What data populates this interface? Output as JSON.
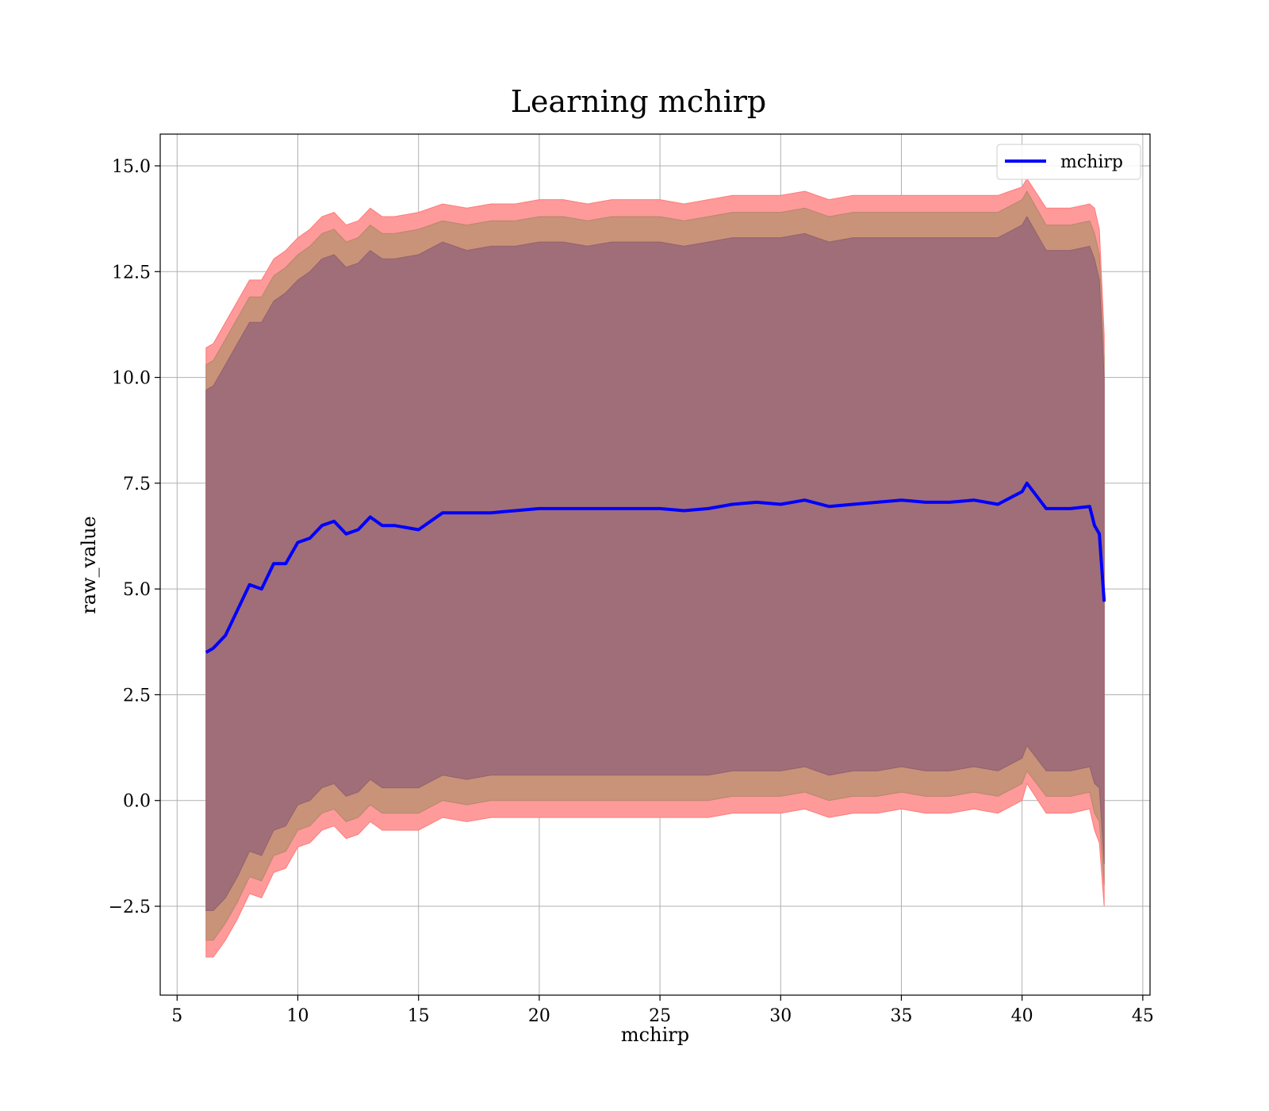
{
  "chart_data": {
    "type": "line",
    "title": "Learning mchirp",
    "xlabel": "mchirp",
    "ylabel": "raw_value",
    "xlim": [
      4.3,
      45.3
    ],
    "ylim": [
      -4.6,
      15.75
    ],
    "xticks": [
      5,
      10,
      15,
      20,
      25,
      30,
      35,
      40,
      45
    ],
    "xtick_labels": [
      "5",
      "10",
      "15",
      "20",
      "25",
      "30",
      "35",
      "40",
      "45"
    ],
    "yticks": [
      -2.5,
      0.0,
      2.5,
      5.0,
      7.5,
      10.0,
      12.5,
      15.0
    ],
    "ytick_labels": [
      "−2.5",
      "0.0",
      "2.5",
      "5.0",
      "7.5",
      "10.0",
      "12.5",
      "15.0"
    ],
    "grid": true,
    "legend": {
      "placement": "upper right",
      "entries": [
        "mchirp"
      ]
    },
    "colors": {
      "line": "#0000ff",
      "band_outer": "#ff9a9a",
      "band_middle": "#c89378",
      "band_inner": "#a06e78"
    },
    "series": [
      {
        "name": "mchirp",
        "x": [
          6.2,
          6.5,
          7.0,
          7.5,
          8.0,
          8.5,
          9.0,
          9.5,
          10.0,
          10.5,
          11.0,
          11.5,
          12.0,
          12.5,
          13.0,
          13.5,
          14.0,
          15.0,
          16.0,
          17.0,
          18.0,
          19.0,
          20.0,
          21.0,
          22.0,
          23.0,
          24.0,
          25.0,
          26.0,
          27.0,
          28.0,
          29.0,
          30.0,
          31.0,
          32.0,
          33.0,
          34.0,
          35.0,
          36.0,
          37.0,
          38.0,
          39.0,
          40.0,
          40.2,
          41.0,
          42.0,
          42.8,
          43.0,
          43.2,
          43.4
        ],
        "mean": [
          3.5,
          3.6,
          3.9,
          4.5,
          5.1,
          5.0,
          5.6,
          5.6,
          6.1,
          6.2,
          6.5,
          6.6,
          6.3,
          6.4,
          6.7,
          6.5,
          6.5,
          6.4,
          6.8,
          6.8,
          6.8,
          6.85,
          6.9,
          6.9,
          6.9,
          6.9,
          6.9,
          6.9,
          6.85,
          6.9,
          7.0,
          7.05,
          7.0,
          7.1,
          6.95,
          7.0,
          7.05,
          7.1,
          7.05,
          7.05,
          7.1,
          7.0,
          7.3,
          7.5,
          6.9,
          6.9,
          6.95,
          6.5,
          6.3,
          4.7
        ],
        "upper_inner": [
          9.7,
          9.8,
          10.3,
          10.8,
          11.3,
          11.3,
          11.8,
          12.0,
          12.3,
          12.5,
          12.8,
          12.9,
          12.6,
          12.7,
          13.0,
          12.8,
          12.8,
          12.9,
          13.2,
          13.0,
          13.1,
          13.1,
          13.2,
          13.2,
          13.1,
          13.2,
          13.2,
          13.2,
          13.1,
          13.2,
          13.3,
          13.3,
          13.3,
          13.4,
          13.2,
          13.3,
          13.3,
          13.3,
          13.3,
          13.3,
          13.3,
          13.3,
          13.6,
          13.8,
          13.0,
          13.0,
          13.1,
          12.8,
          12.3,
          10.0
        ],
        "upper_middle": [
          10.3,
          10.4,
          10.9,
          11.4,
          11.9,
          11.9,
          12.4,
          12.6,
          12.9,
          13.1,
          13.4,
          13.5,
          13.2,
          13.3,
          13.6,
          13.4,
          13.4,
          13.5,
          13.7,
          13.6,
          13.7,
          13.7,
          13.8,
          13.8,
          13.7,
          13.8,
          13.8,
          13.8,
          13.7,
          13.8,
          13.9,
          13.9,
          13.9,
          14.0,
          13.8,
          13.9,
          13.9,
          13.9,
          13.9,
          13.9,
          13.9,
          13.9,
          14.2,
          14.4,
          13.6,
          13.6,
          13.7,
          13.4,
          12.9,
          10.5
        ],
        "upper_outer": [
          10.7,
          10.8,
          11.3,
          11.8,
          12.3,
          12.3,
          12.8,
          13.0,
          13.3,
          13.5,
          13.8,
          13.9,
          13.6,
          13.7,
          14.0,
          13.8,
          13.8,
          13.9,
          14.1,
          14.0,
          14.1,
          14.1,
          14.2,
          14.2,
          14.1,
          14.2,
          14.2,
          14.2,
          14.1,
          14.2,
          14.3,
          14.3,
          14.3,
          14.4,
          14.2,
          14.3,
          14.3,
          14.3,
          14.3,
          14.3,
          14.3,
          14.3,
          14.5,
          14.7,
          14.0,
          14.0,
          14.1,
          14.0,
          13.5,
          11.0
        ],
        "lower_inner": [
          -2.6,
          -2.6,
          -2.3,
          -1.8,
          -1.2,
          -1.3,
          -0.7,
          -0.6,
          -0.1,
          0.0,
          0.3,
          0.4,
          0.1,
          0.2,
          0.5,
          0.3,
          0.3,
          0.3,
          0.6,
          0.5,
          0.6,
          0.6,
          0.6,
          0.6,
          0.6,
          0.6,
          0.6,
          0.6,
          0.6,
          0.6,
          0.7,
          0.7,
          0.7,
          0.8,
          0.6,
          0.7,
          0.7,
          0.8,
          0.7,
          0.7,
          0.8,
          0.7,
          1.0,
          1.3,
          0.7,
          0.7,
          0.8,
          0.4,
          0.3,
          -1.5
        ],
        "lower_middle": [
          -3.3,
          -3.3,
          -2.9,
          -2.4,
          -1.8,
          -1.9,
          -1.3,
          -1.2,
          -0.7,
          -0.6,
          -0.3,
          -0.2,
          -0.5,
          -0.4,
          -0.1,
          -0.3,
          -0.3,
          -0.3,
          0.0,
          -0.1,
          0.0,
          0.0,
          0.0,
          0.0,
          0.0,
          0.0,
          0.0,
          0.0,
          0.0,
          0.0,
          0.1,
          0.1,
          0.1,
          0.2,
          0.0,
          0.1,
          0.1,
          0.2,
          0.1,
          0.1,
          0.2,
          0.1,
          0.4,
          0.7,
          0.1,
          0.1,
          0.2,
          -0.3,
          -0.5,
          -2.0
        ],
        "lower_outer": [
          -3.7,
          -3.7,
          -3.3,
          -2.8,
          -2.2,
          -2.3,
          -1.7,
          -1.6,
          -1.1,
          -1.0,
          -0.7,
          -0.6,
          -0.9,
          -0.8,
          -0.5,
          -0.7,
          -0.7,
          -0.7,
          -0.4,
          -0.5,
          -0.4,
          -0.4,
          -0.4,
          -0.4,
          -0.4,
          -0.4,
          -0.4,
          -0.4,
          -0.4,
          -0.4,
          -0.3,
          -0.3,
          -0.3,
          -0.2,
          -0.4,
          -0.3,
          -0.3,
          -0.2,
          -0.3,
          -0.3,
          -0.2,
          -0.3,
          0.0,
          0.4,
          -0.3,
          -0.3,
          -0.2,
          -0.7,
          -1.0,
          -2.5
        ]
      }
    ]
  }
}
